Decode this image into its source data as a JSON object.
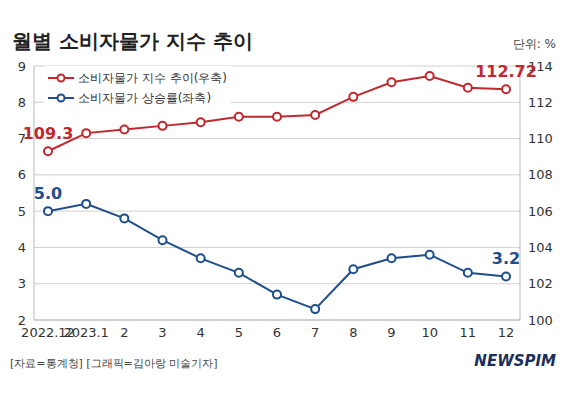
{
  "chart_data": {
    "type": "line",
    "title": "월별 소비자물가 지수 추이",
    "annotations": [
      "단위: %",
      "[자료=통계청] [그래픽=김아랑 미술기자]",
      "NEWSPIM"
    ],
    "categories": [
      "2022.12",
      "2023.1",
      "2",
      "3",
      "4",
      "5",
      "6",
      "7",
      "8",
      "9",
      "10",
      "11",
      "12"
    ],
    "series": [
      {
        "name": "소비자물가 지수 추이(우축)",
        "color": "#c0282e",
        "axis": "y2",
        "marker": "circle",
        "values": [
          109.3,
          110.3,
          110.5,
          110.7,
          110.9,
          111.2,
          111.2,
          111.3,
          112.3,
          113.1,
          113.45,
          112.8,
          112.72
        ],
        "value_labels": [
          "109.3",
          null,
          null,
          null,
          null,
          null,
          null,
          null,
          null,
          null,
          null,
          null,
          "112.72"
        ]
      },
      {
        "name": "소비자물가 상승률(좌축)",
        "color": "#1f4e8c",
        "axis": "y",
        "marker": "circle",
        "values": [
          5.0,
          5.2,
          4.8,
          4.2,
          3.7,
          3.3,
          2.7,
          2.3,
          3.4,
          3.7,
          3.8,
          3.3,
          3.2
        ],
        "value_labels": [
          "5.0",
          null,
          null,
          null,
          null,
          null,
          null,
          null,
          null,
          null,
          null,
          null,
          "3.2"
        ]
      }
    ],
    "ylim": [
      2,
      9
    ],
    "yticks": [
      2,
      3,
      4,
      5,
      6,
      7,
      8,
      9
    ],
    "y2lim": [
      100,
      114
    ],
    "y2ticks": [
      100,
      102,
      104,
      106,
      108,
      110,
      112,
      114
    ],
    "grid": true,
    "data_labels": true,
    "legend": "upper left"
  }
}
